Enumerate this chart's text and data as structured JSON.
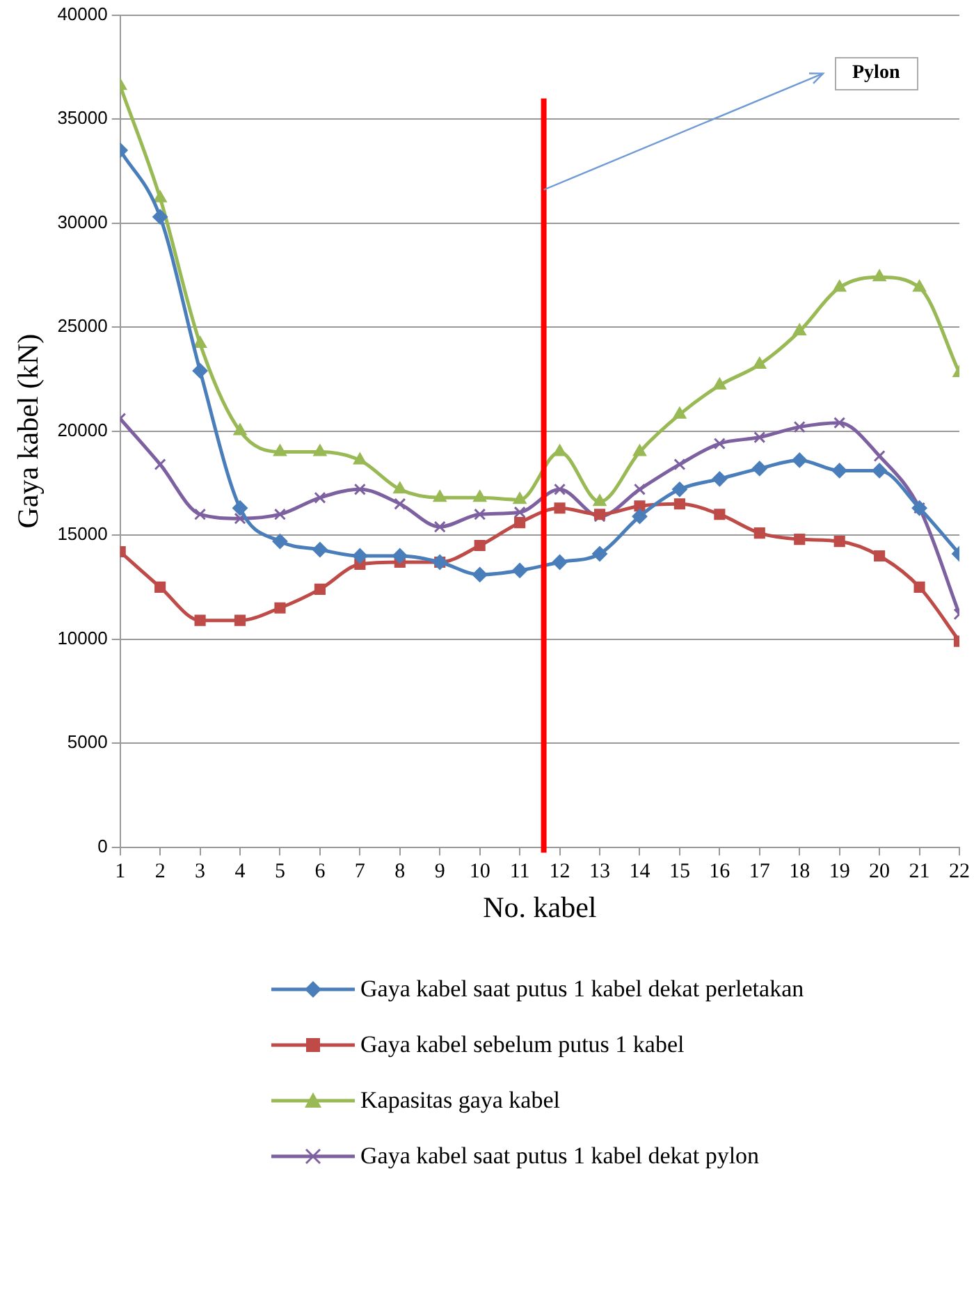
{
  "chart_data": {
    "type": "line",
    "xlabel": "No. kabel",
    "ylabel": "Gaya kabel (kN)",
    "x": [
      1,
      2,
      3,
      4,
      5,
      6,
      7,
      8,
      9,
      10,
      11,
      12,
      13,
      14,
      15,
      16,
      17,
      18,
      19,
      20,
      21,
      22
    ],
    "xlim": [
      1,
      22
    ],
    "xticks": [
      1,
      2,
      3,
      4,
      5,
      6,
      7,
      8,
      9,
      10,
      11,
      12,
      13,
      14,
      15,
      16,
      17,
      18,
      19,
      20,
      21,
      22
    ],
    "ylim": [
      0,
      40000
    ],
    "yticks": [
      0,
      5000,
      10000,
      15000,
      20000,
      25000,
      30000,
      35000,
      40000
    ],
    "grid": "y",
    "legend": "bottom",
    "series": [
      {
        "name": "Gaya kabel saat putus 1 kabel dekat perletakan",
        "color": "#4a7ebb",
        "marker": "diamond",
        "values": [
          33500,
          30300,
          22900,
          16300,
          14700,
          14300,
          14000,
          14000,
          13700,
          13100,
          13300,
          13700,
          14100,
          15900,
          17200,
          17700,
          18200,
          18600,
          18100,
          18100,
          16300,
          14100
        ]
      },
      {
        "name": "Gaya kabel sebelum putus 1 kabel",
        "color": "#be4b48",
        "marker": "square",
        "values": [
          14200,
          12500,
          10900,
          10900,
          11500,
          12400,
          13600,
          13700,
          13700,
          14500,
          15600,
          16300,
          16000,
          16400,
          16500,
          16000,
          15100,
          14800,
          14700,
          14000,
          12500,
          9900
        ]
      },
      {
        "name": "Kapasitas gaya kabel",
        "color": "#98b954",
        "marker": "triangle",
        "values": [
          36600,
          31200,
          24200,
          20000,
          19000,
          19000,
          18600,
          17200,
          16800,
          16800,
          16700,
          19000,
          16600,
          19000,
          20800,
          22200,
          23200,
          24800,
          26900,
          27400,
          26900,
          22800
        ]
      },
      {
        "name": "Gaya kabel saat putus 1 kabel dekat pylon",
        "color": "#7d60a0",
        "marker": "cross",
        "values": [
          20600,
          18400,
          16000,
          15800,
          16000,
          16800,
          17200,
          16500,
          15400,
          16000,
          16100,
          17200,
          15900,
          17200,
          18400,
          19400,
          19700,
          20200,
          20400,
          18800,
          16300,
          11200
        ]
      }
    ],
    "ref_lines": [
      {
        "axis": "x",
        "value": 11.6,
        "color": "#ff0000"
      }
    ],
    "annotations": [
      "Pylon"
    ]
  }
}
